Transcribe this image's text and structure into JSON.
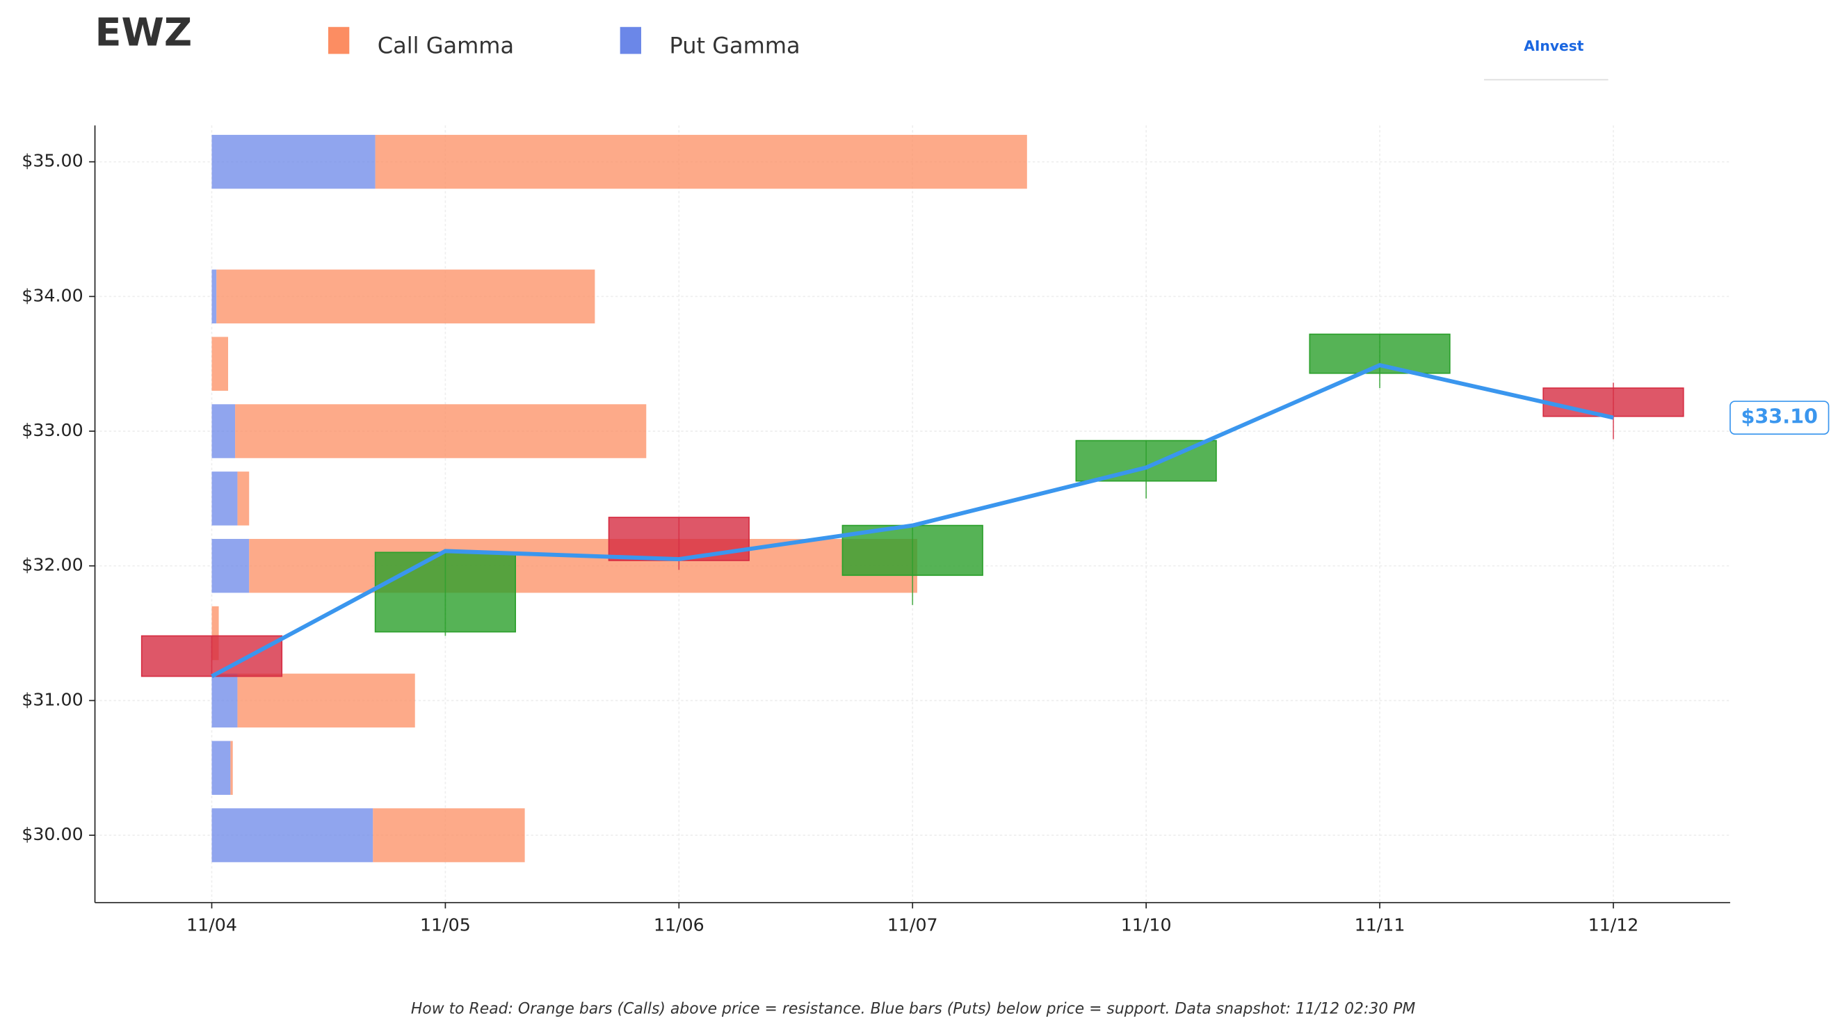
{
  "chart_data": {
    "type": "candlestick",
    "title": "EWZ",
    "categories": [
      "11/04",
      "11/05",
      "11/06",
      "11/07",
      "11/10",
      "11/11",
      "11/12"
    ],
    "open": [
      31.48,
      31.51,
      32.36,
      31.93,
      32.63,
      33.43,
      33.32
    ],
    "high": [
      31.48,
      32.1,
      32.36,
      32.3,
      32.93,
      33.72,
      33.36
    ],
    "low": [
      31.18,
      31.48,
      31.97,
      31.71,
      32.5,
      33.32,
      32.94
    ],
    "close": [
      31.18,
      32.1,
      32.04,
      32.3,
      32.93,
      33.72,
      33.11
    ],
    "up_color": "#2ca02c",
    "down_color": "#d62d42",
    "price_line": {
      "color": "#3a96ee",
      "values": [
        31.18,
        32.11,
        32.05,
        32.3,
        32.73,
        33.49,
        33.1
      ],
      "last_label": "$33.10"
    },
    "gamma": {
      "strikes": [
        30,
        30.5,
        31,
        31.5,
        32,
        32.5,
        33,
        33.5,
        34,
        35
      ],
      "series": [
        {
          "name": "Put Gamma",
          "color": "#6b87e8",
          "values": [
            0.69,
            0.08,
            0.11,
            0,
            0.16,
            0.11,
            0.1,
            0,
            0.02,
            0.7
          ]
        },
        {
          "name": "Call Gamma",
          "color": "#fc8d62",
          "values": [
            0.65,
            0.01,
            0.76,
            0.03,
            2.86,
            0.05,
            1.76,
            0.07,
            1.62,
            2.79
          ]
        }
      ]
    },
    "xlim": [
      -0.5,
      6.5
    ],
    "ylim": [
      29.5,
      35.27
    ],
    "yticks": [
      {
        "value": 30,
        "label": "$30.00"
      },
      {
        "value": 31,
        "label": "$31.00"
      },
      {
        "value": 32,
        "label": "$32.00"
      },
      {
        "value": 33,
        "label": "$33.00"
      },
      {
        "value": 34,
        "label": "$34.00"
      },
      {
        "value": 35,
        "label": "$35.00"
      }
    ],
    "grid": true,
    "logo": "AInvest",
    "footnote": "How to Read: Orange bars (Calls) above price = resistance. Blue bars (Puts) below price = support. Data snapshot: 11/12 02:30 PM"
  }
}
